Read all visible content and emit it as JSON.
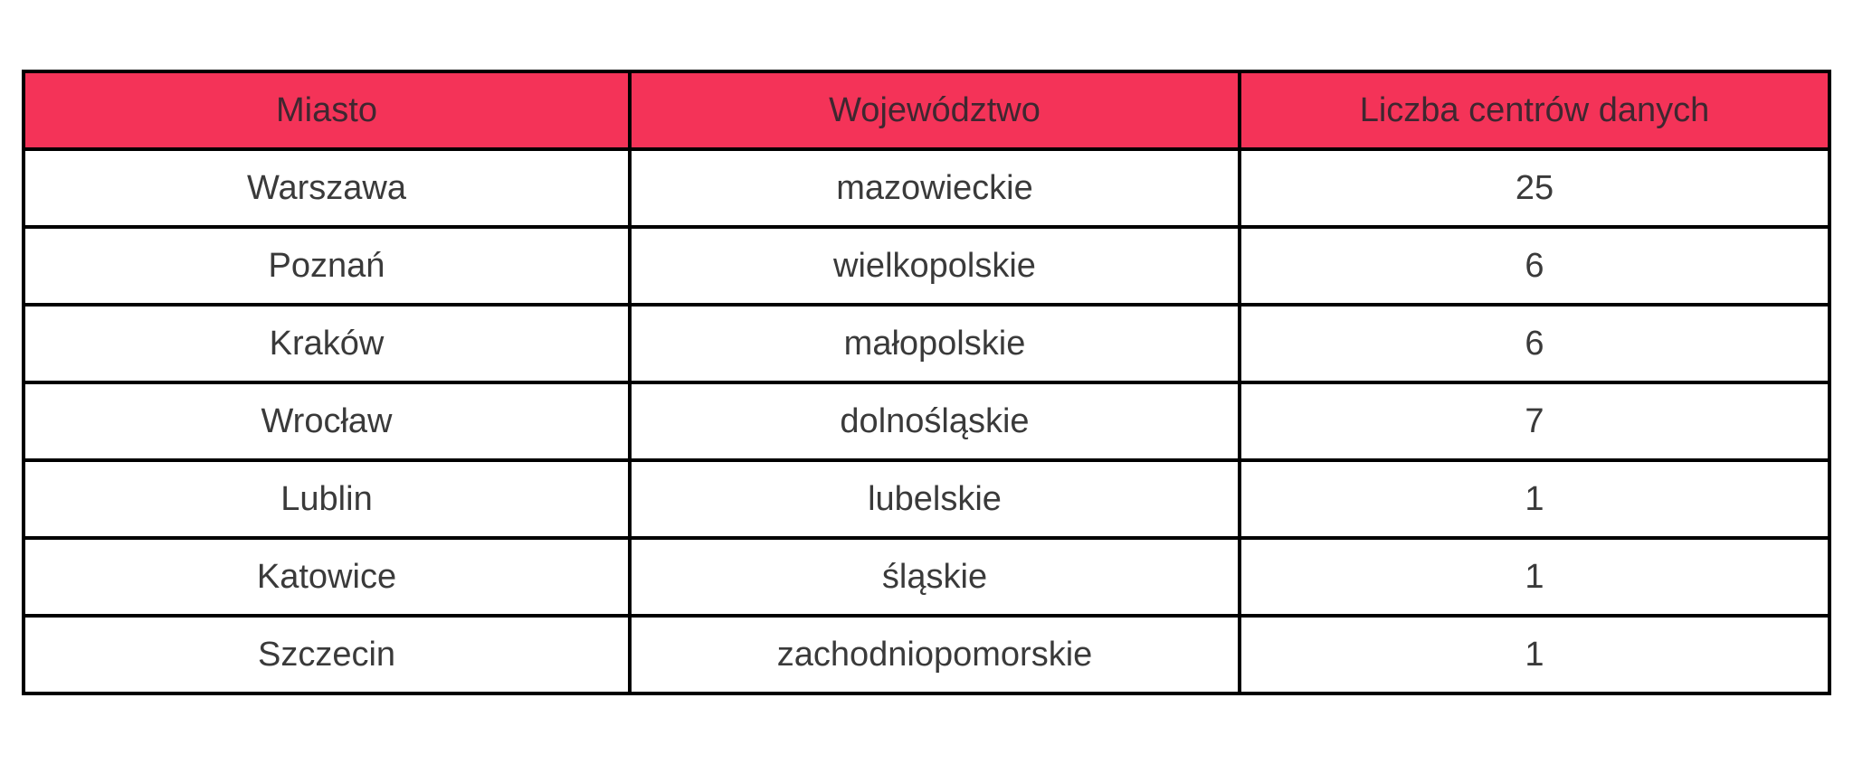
{
  "chart_data": {
    "type": "table",
    "columns": [
      "Miasto",
      "Województwo",
      "Liczba centrów danych"
    ],
    "rows": [
      [
        "Warszawa",
        "mazowieckie",
        "25"
      ],
      [
        "Poznań",
        "wielkopolskie",
        "6"
      ],
      [
        "Kraków",
        "małopolskie",
        "6"
      ],
      [
        "Wrocław",
        "dolnośląskie",
        "7"
      ],
      [
        "Lublin",
        "lubelskie",
        "1"
      ],
      [
        "Katowice",
        "śląskie",
        "1"
      ],
      [
        "Szczecin",
        "zachodniopomorskie",
        "1"
      ]
    ],
    "layout": {
      "header_position": "top",
      "grid": "all-borders",
      "text_align": "center"
    }
  },
  "colors": {
    "header_bg": "#F43358",
    "header_text": "#3F2730",
    "body_text": "#3A3A3A",
    "border": "#000000",
    "page_bg": "#FFFFFF"
  }
}
